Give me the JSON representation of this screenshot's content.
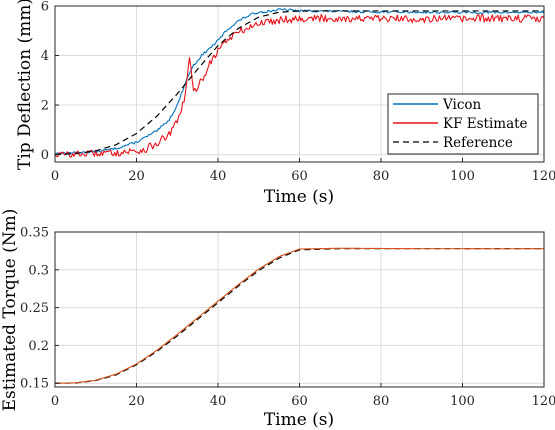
{
  "chart_data": [
    {
      "type": "line",
      "xlabel": "Time (s)",
      "ylabel": "Tip Deflection (mm)",
      "xlim": [
        0,
        120
      ],
      "ylim": [
        -0.3,
        6
      ],
      "xticks": [
        0,
        20,
        40,
        60,
        80,
        100,
        120
      ],
      "yticks": [
        0,
        2,
        4,
        6
      ],
      "grid": true,
      "legend_position": "bottom-right",
      "series": [
        {
          "name": "Vicon",
          "color": "#0072BD",
          "style": "solid",
          "x": [
            0,
            5,
            10,
            15,
            20,
            25,
            28,
            30,
            32,
            33,
            34,
            36,
            38,
            40,
            42,
            45,
            48,
            50,
            53,
            55,
            57,
            60,
            65,
            70,
            80,
            90,
            100,
            110,
            120
          ],
          "y": [
            0.05,
            0.08,
            0.12,
            0.25,
            0.5,
            0.95,
            1.4,
            2.0,
            2.9,
            3.3,
            3.6,
            4.0,
            4.3,
            4.6,
            5.0,
            5.4,
            5.65,
            5.75,
            5.8,
            5.85,
            5.85,
            5.8,
            5.8,
            5.78,
            5.76,
            5.75,
            5.74,
            5.74,
            5.75
          ]
        },
        {
          "name": "KF Estimate",
          "color": "#E8111A",
          "style": "solid",
          "x": [
            0,
            5,
            10,
            15,
            20,
            22,
            25,
            28,
            30,
            32,
            33,
            34,
            36,
            38,
            40,
            42,
            45,
            48,
            50,
            55,
            60,
            70,
            80,
            90,
            100,
            110,
            120
          ],
          "y": [
            0.0,
            0.02,
            0.05,
            0.08,
            0.15,
            0.2,
            0.45,
            0.8,
            1.3,
            2.4,
            3.9,
            2.5,
            3.0,
            3.7,
            4.2,
            4.6,
            4.95,
            5.15,
            5.3,
            5.45,
            5.5,
            5.5,
            5.48,
            5.48,
            5.48,
            5.5,
            5.5
          ]
        },
        {
          "name": "Reference",
          "color": "#000000",
          "style": "dashed",
          "x": [
            0,
            5,
            10,
            15,
            20,
            25,
            30,
            35,
            40,
            45,
            50,
            55,
            60,
            70,
            80,
            90,
            100,
            110,
            120
          ],
          "y": [
            0.0,
            0.04,
            0.15,
            0.4,
            0.85,
            1.55,
            2.45,
            3.45,
            4.4,
            5.1,
            5.55,
            5.75,
            5.8,
            5.8,
            5.8,
            5.8,
            5.8,
            5.8,
            5.8
          ]
        }
      ]
    },
    {
      "type": "line",
      "xlabel": "Time (s)",
      "ylabel": "Estimated Torque (Nm)",
      "xlim": [
        0,
        120
      ],
      "ylim": [
        0.145,
        0.35
      ],
      "xticks": [
        0,
        20,
        40,
        60,
        80,
        100,
        120
      ],
      "yticks": [
        0.15,
        0.2,
        0.25,
        0.3,
        0.35
      ],
      "grid": true,
      "series": [
        {
          "color": "#000000",
          "style": "dashed",
          "x": [
            0,
            5,
            10,
            15,
            20,
            25,
            30,
            35,
            40,
            45,
            50,
            55,
            60,
            70,
            80,
            90,
            100,
            110,
            120
          ],
          "y": [
            0.15,
            0.1503,
            0.1535,
            0.161,
            0.1745,
            0.192,
            0.2125,
            0.2345,
            0.2565,
            0.2785,
            0.299,
            0.3155,
            0.3265,
            0.328,
            0.328,
            0.328,
            0.328,
            0.328,
            0.328
          ]
        },
        {
          "color": "#D95319",
          "style": "solid",
          "x": [
            0,
            5,
            10,
            15,
            20,
            25,
            30,
            35,
            40,
            45,
            50,
            55,
            60,
            70,
            80,
            90,
            100,
            110,
            120
          ],
          "y": [
            0.15,
            0.1505,
            0.154,
            0.162,
            0.1755,
            0.1935,
            0.2145,
            0.2365,
            0.2585,
            0.2805,
            0.301,
            0.3175,
            0.3275,
            0.3285,
            0.3282,
            0.328,
            0.328,
            0.3278,
            0.328
          ]
        }
      ]
    }
  ]
}
